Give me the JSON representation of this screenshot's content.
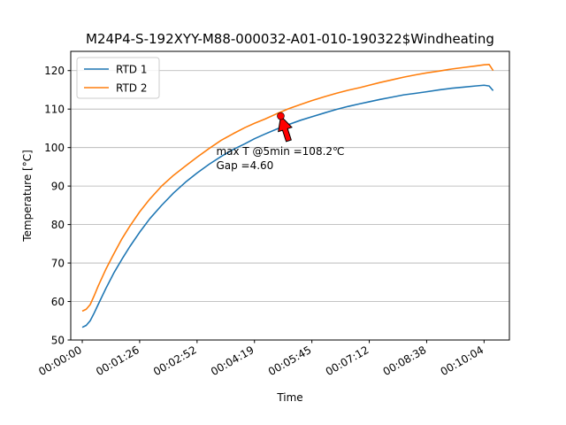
{
  "chart_data": {
    "type": "line",
    "title": "M24P4-S-192XYY-M88-000032-A01-010-190322$Windheating",
    "xlabel": "Time",
    "ylabel": "Temperature [°C]",
    "xlim": [
      -290,
      10760
    ],
    "ylim": [
      50,
      125
    ],
    "x_unit": "seconds since 00:00:00",
    "x_ticks": [
      {
        "value": 0,
        "label": "00:00:00"
      },
      {
        "value": 1446,
        "label": "00:01:26"
      },
      {
        "value": 2892,
        "label": "00:02:52"
      },
      {
        "value": 4338,
        "label": "00:04:19"
      },
      {
        "value": 5784,
        "label": "00:05:45"
      },
      {
        "value": 7230,
        "label": "00:07:12"
      },
      {
        "value": 8676,
        "label": "00:08:38"
      },
      {
        "value": 10122,
        "label": "00:10:04"
      }
    ],
    "y_ticks": [
      {
        "value": 50,
        "label": "50"
      },
      {
        "value": 60,
        "label": "60"
      },
      {
        "value": 70,
        "label": "70"
      },
      {
        "value": 80,
        "label": "80"
      },
      {
        "value": 90,
        "label": "90"
      },
      {
        "value": 100,
        "label": "100"
      },
      {
        "value": 110,
        "label": "110"
      },
      {
        "value": 120,
        "label": "120"
      }
    ],
    "grid": "horizontal",
    "legend_position": "top-left",
    "series": [
      {
        "name": "RTD 1",
        "color": "#1f77b4",
        "x": [
          0,
          100,
          200,
          300,
          400,
          600,
          800,
          1000,
          1200,
          1446,
          1700,
          2000,
          2300,
          2600,
          2892,
          3200,
          3500,
          3800,
          4100,
          4338,
          4600,
          4900,
          5200,
          5500,
          5784,
          6100,
          6400,
          6700,
          7000,
          7230,
          7500,
          7800,
          8100,
          8400,
          8676,
          9000,
          9300,
          9600,
          9900,
          10122,
          10250,
          10350
        ],
        "y": [
          53.3,
          53.8,
          55.0,
          57.0,
          59.2,
          63.5,
          67.5,
          71.0,
          74.3,
          78.0,
          81.5,
          85.0,
          88.2,
          91.0,
          93.4,
          95.7,
          97.7,
          99.5,
          101.0,
          102.3,
          103.5,
          104.8,
          106.0,
          107.1,
          108.0,
          109.0,
          109.9,
          110.7,
          111.4,
          111.9,
          112.5,
          113.1,
          113.7,
          114.1,
          114.5,
          115.0,
          115.4,
          115.7,
          116.0,
          116.2,
          116.0,
          114.8
        ]
      },
      {
        "name": "RTD 2",
        "color": "#ff7f0e",
        "x": [
          0,
          100,
          200,
          300,
          400,
          600,
          800,
          1000,
          1200,
          1446,
          1700,
          2000,
          2300,
          2600,
          2892,
          3200,
          3500,
          3800,
          4100,
          4338,
          4600,
          4900,
          5200,
          5500,
          5784,
          6100,
          6400,
          6700,
          7000,
          7230,
          7500,
          7800,
          8100,
          8400,
          8676,
          9000,
          9300,
          9600,
          9900,
          10122,
          10250,
          10350
        ],
        "y": [
          57.5,
          58.0,
          59.2,
          61.5,
          64.0,
          68.5,
          72.5,
          76.3,
          79.6,
          83.3,
          86.6,
          90.0,
          92.8,
          95.2,
          97.5,
          99.8,
          101.9,
          103.6,
          105.2,
          106.3,
          107.4,
          108.8,
          110.1,
          111.2,
          112.2,
          113.2,
          114.1,
          114.9,
          115.6,
          116.2,
          116.9,
          117.6,
          118.3,
          118.9,
          119.4,
          119.9,
          120.4,
          120.8,
          121.2,
          121.5,
          121.6,
          120.0
        ]
      }
    ],
    "annotations": [
      {
        "text_lines": [
          "max T @5min =108.2℃",
          "Gap =4.60"
        ],
        "point": {
          "x": 5000,
          "y": 108.2
        },
        "point_color": "#ff0000",
        "arrow_color": "#ff0000"
      }
    ]
  }
}
